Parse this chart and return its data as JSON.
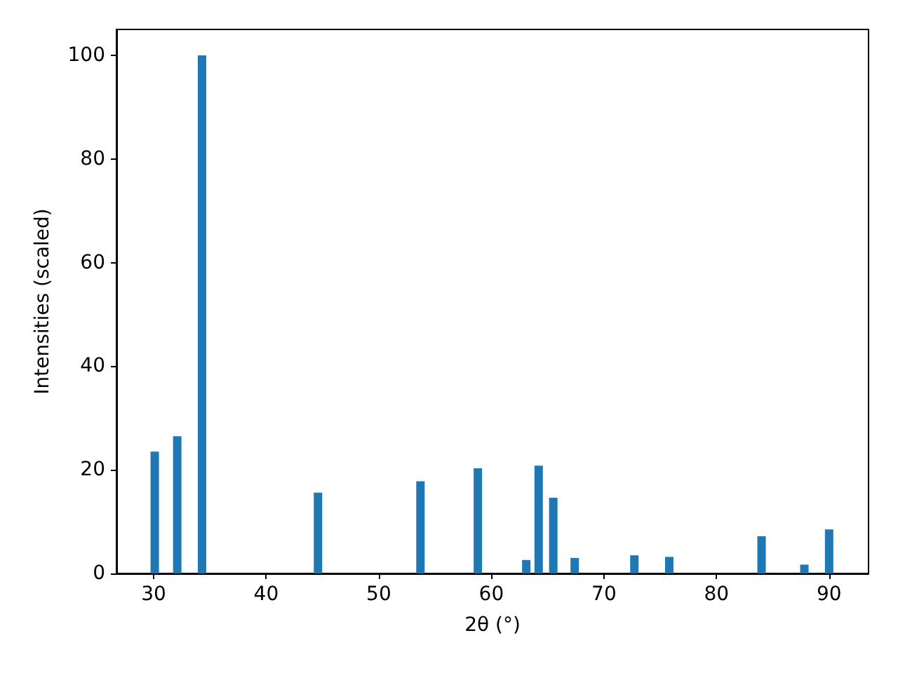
{
  "chart_data": {
    "type": "bar",
    "xlabel": "2θ (°)",
    "ylabel": "Intensities (scaled)",
    "x": [
      30.1,
      32.1,
      34.3,
      44.6,
      53.7,
      58.8,
      63.1,
      64.2,
      65.5,
      67.4,
      72.7,
      75.8,
      84.0,
      87.8,
      90.0
    ],
    "values": [
      23.5,
      26.5,
      100,
      15.6,
      17.8,
      20.3,
      2.6,
      20.8,
      14.6,
      3.0,
      3.5,
      3.2,
      7.2,
      1.7,
      8.5
    ],
    "color": "#1f77b4",
    "xlim": [
      26.7,
      93.5
    ],
    "xticks": [
      30,
      40,
      50,
      60,
      70,
      80,
      90
    ],
    "ylim": [
      0,
      105
    ],
    "yticks": [
      0,
      20,
      40,
      60,
      80,
      100
    ],
    "grid": false
  }
}
